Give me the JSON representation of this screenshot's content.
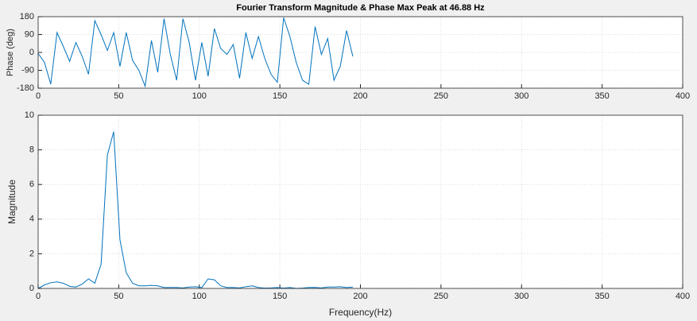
{
  "chart_data": [
    {
      "type": "line",
      "title": "Fourier Transform Magnitude & Phase  Max Peak at    46.88 Hz",
      "y_label": "Phase (deg)",
      "x": [
        0,
        3.90625,
        7.8125,
        11.71875,
        15.625,
        19.53125,
        23.4375,
        27.34375,
        31.25,
        35.15625,
        39.0625,
        42.96875,
        46.875,
        50.78125,
        54.6875,
        58.59375,
        62.5,
        66.40625,
        70.3125,
        74.21875,
        78.125,
        82.03125,
        85.9375,
        89.84375,
        93.75,
        97.65625,
        101.5625,
        105.46875,
        109.375,
        113.28125,
        117.1875,
        121.09375,
        125,
        128.90625,
        132.8125,
        136.71875,
        140.625,
        144.53125,
        148.4375,
        152.34375,
        156.25,
        160.15625,
        164.0625,
        167.96875,
        171.875,
        175.78125,
        179.6875,
        183.59375,
        187.5,
        191.40625,
        195.3125
      ],
      "values": [
        -5,
        -50,
        -160,
        100,
        30,
        -45,
        50,
        -20,
        -110,
        160,
        90,
        10,
        100,
        -70,
        100,
        -40,
        -90,
        -170,
        60,
        -100,
        170,
        -10,
        -140,
        170,
        50,
        -140,
        50,
        -120,
        120,
        20,
        -10,
        40,
        -130,
        100,
        -30,
        80,
        -30,
        -110,
        -150,
        175,
        80,
        -50,
        -140,
        -160,
        130,
        -10,
        70,
        -140,
        -70,
        110,
        -20
      ],
      "color": "#0072bd",
      "xlim": [
        0,
        400
      ],
      "xticks": [
        0,
        50,
        100,
        150,
        200,
        250,
        300,
        350,
        400
      ],
      "ylim": [
        -180,
        180
      ],
      "yticks": [
        -180,
        -90,
        0,
        90,
        180
      ],
      "grid": true
    },
    {
      "type": "line",
      "x_label": "Frequency(Hz)",
      "y_label": "Magnitude",
      "x": [
        0,
        3.90625,
        7.8125,
        11.71875,
        15.625,
        19.53125,
        23.4375,
        27.34375,
        31.25,
        35.15625,
        39.0625,
        42.96875,
        46.875,
        50.78125,
        54.6875,
        58.59375,
        62.5,
        66.40625,
        70.3125,
        74.21875,
        78.125,
        82.03125,
        85.9375,
        89.84375,
        93.75,
        97.65625,
        101.5625,
        105.46875,
        109.375,
        113.28125,
        117.1875,
        121.09375,
        125,
        128.90625,
        132.8125,
        136.71875,
        140.625,
        144.53125,
        148.4375,
        152.34375,
        156.25,
        160.15625,
        164.0625,
        167.96875,
        171.875,
        175.78125,
        179.6875,
        183.59375,
        187.5,
        191.40625,
        195.3125
      ],
      "values": [
        0,
        0.2,
        0.33,
        0.38,
        0.3,
        0.12,
        0.08,
        0.25,
        0.55,
        0.3,
        1.4,
        7.7,
        9.05,
        2.8,
        0.9,
        0.3,
        0.15,
        0.15,
        0.18,
        0.15,
        0.05,
        0.05,
        0.05,
        0.03,
        0.08,
        0.1,
        0.05,
        0.55,
        0.5,
        0.15,
        0.05,
        0.05,
        0.03,
        0.1,
        0.15,
        0.05,
        0.02,
        0.03,
        0.05,
        0.02,
        0.05,
        0,
        0.02,
        0.05,
        0.06,
        0.03,
        0.08,
        0.08,
        0.1,
        0.05,
        0.08
      ],
      "color": "#0072bd",
      "xlim": [
        0,
        400
      ],
      "xticks": [
        0,
        50,
        100,
        150,
        200,
        250,
        300,
        350,
        400
      ],
      "ylim": [
        0,
        10
      ],
      "yticks": [
        0,
        2,
        4,
        6,
        8,
        10
      ],
      "grid": true
    }
  ]
}
